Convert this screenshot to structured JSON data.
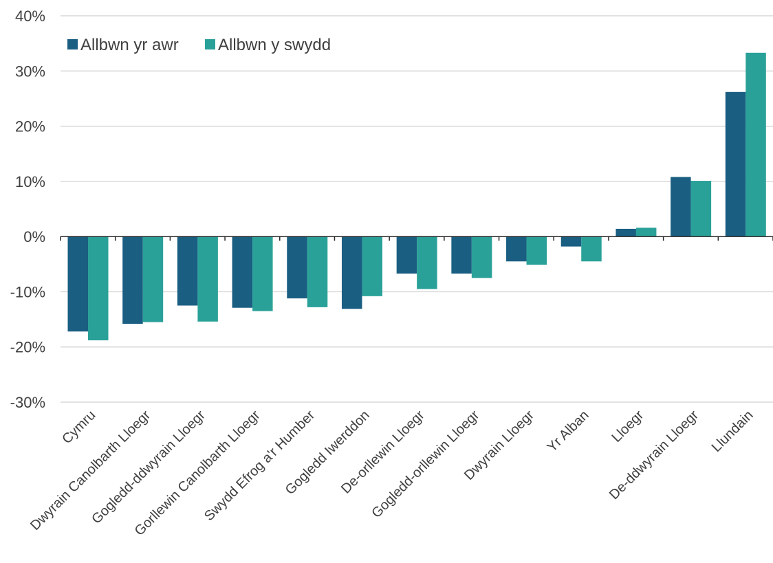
{
  "chart_data": {
    "type": "bar",
    "categories": [
      "Cymru",
      "Dwyrain Canolbarth Lloegr",
      "Gogledd-ddwyrain Lloegr",
      "Gorllewin Canolbarth Lloegr",
      "Swydd Efrog a'r Humber",
      "Gogledd Iwerddon",
      "De-orllewin Lloegr",
      "Gogledd-orllewin Lloegr",
      "Dwyrain Lloegr",
      "Yr Alban",
      "Lloegr",
      "De-ddwyrain Lloegr",
      "Llundain"
    ],
    "series": [
      {
        "name": "Allbwn yr awr",
        "color": "#1a5e82",
        "values": [
          -17.2,
          -15.8,
          -12.5,
          -12.9,
          -11.2,
          -13.1,
          -6.7,
          -6.7,
          -4.5,
          -1.8,
          1.4,
          10.8,
          26.2
        ]
      },
      {
        "name": "Allbwn y swydd",
        "color": "#2aa198",
        "values": [
          -18.8,
          -15.5,
          -15.4,
          -13.5,
          -12.8,
          -10.8,
          -9.5,
          -7.5,
          -5.1,
          -4.5,
          1.6,
          10.1,
          33.3
        ]
      }
    ],
    "ylim": [
      -30,
      40
    ],
    "yticks": [
      40,
      30,
      20,
      10,
      0,
      -10,
      -20,
      -30
    ],
    "ytick_labels": [
      "40%",
      "30%",
      "20%",
      "10%",
      "0%",
      "-10%",
      "-20%",
      "-30%"
    ],
    "grid": true,
    "legend_position": "top-left",
    "title": "",
    "xlabel": "",
    "ylabel": ""
  }
}
